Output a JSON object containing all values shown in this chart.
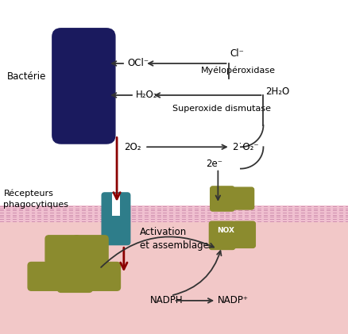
{
  "bg_color": "#ffffff",
  "cell_bg_color": "#f2c8c8",
  "membrane_top_color": "#e8c0cc",
  "membrane_bot_color": "#e0b8c8",
  "bacterium_color": "#1a1a5e",
  "receptor_color": "#2e7d8a",
  "nox_color": "#8b8b2e",
  "arrow_color": "#333333",
  "red_arrow_color": "#8b0000",
  "labels": {
    "bacterie": "Bactérie",
    "recepteurs": "Récepteurs\nphagocytiques",
    "ocl": "OCl⁻",
    "cl": "Cl⁻",
    "myeloperoxidase": "Myélopéroxidase",
    "h2o2": "H₂O₂",
    "2h2o": "2H₂O",
    "superoxide": "Superoxide dismutase",
    "2o2": "2O₂",
    "2o2rad": "2˙O₂⁻",
    "2e": "2e⁻",
    "activation": "Activation\net assemblage",
    "nadph": "NADPH",
    "nadp": "NADP⁺",
    "nox": "NOX"
  }
}
